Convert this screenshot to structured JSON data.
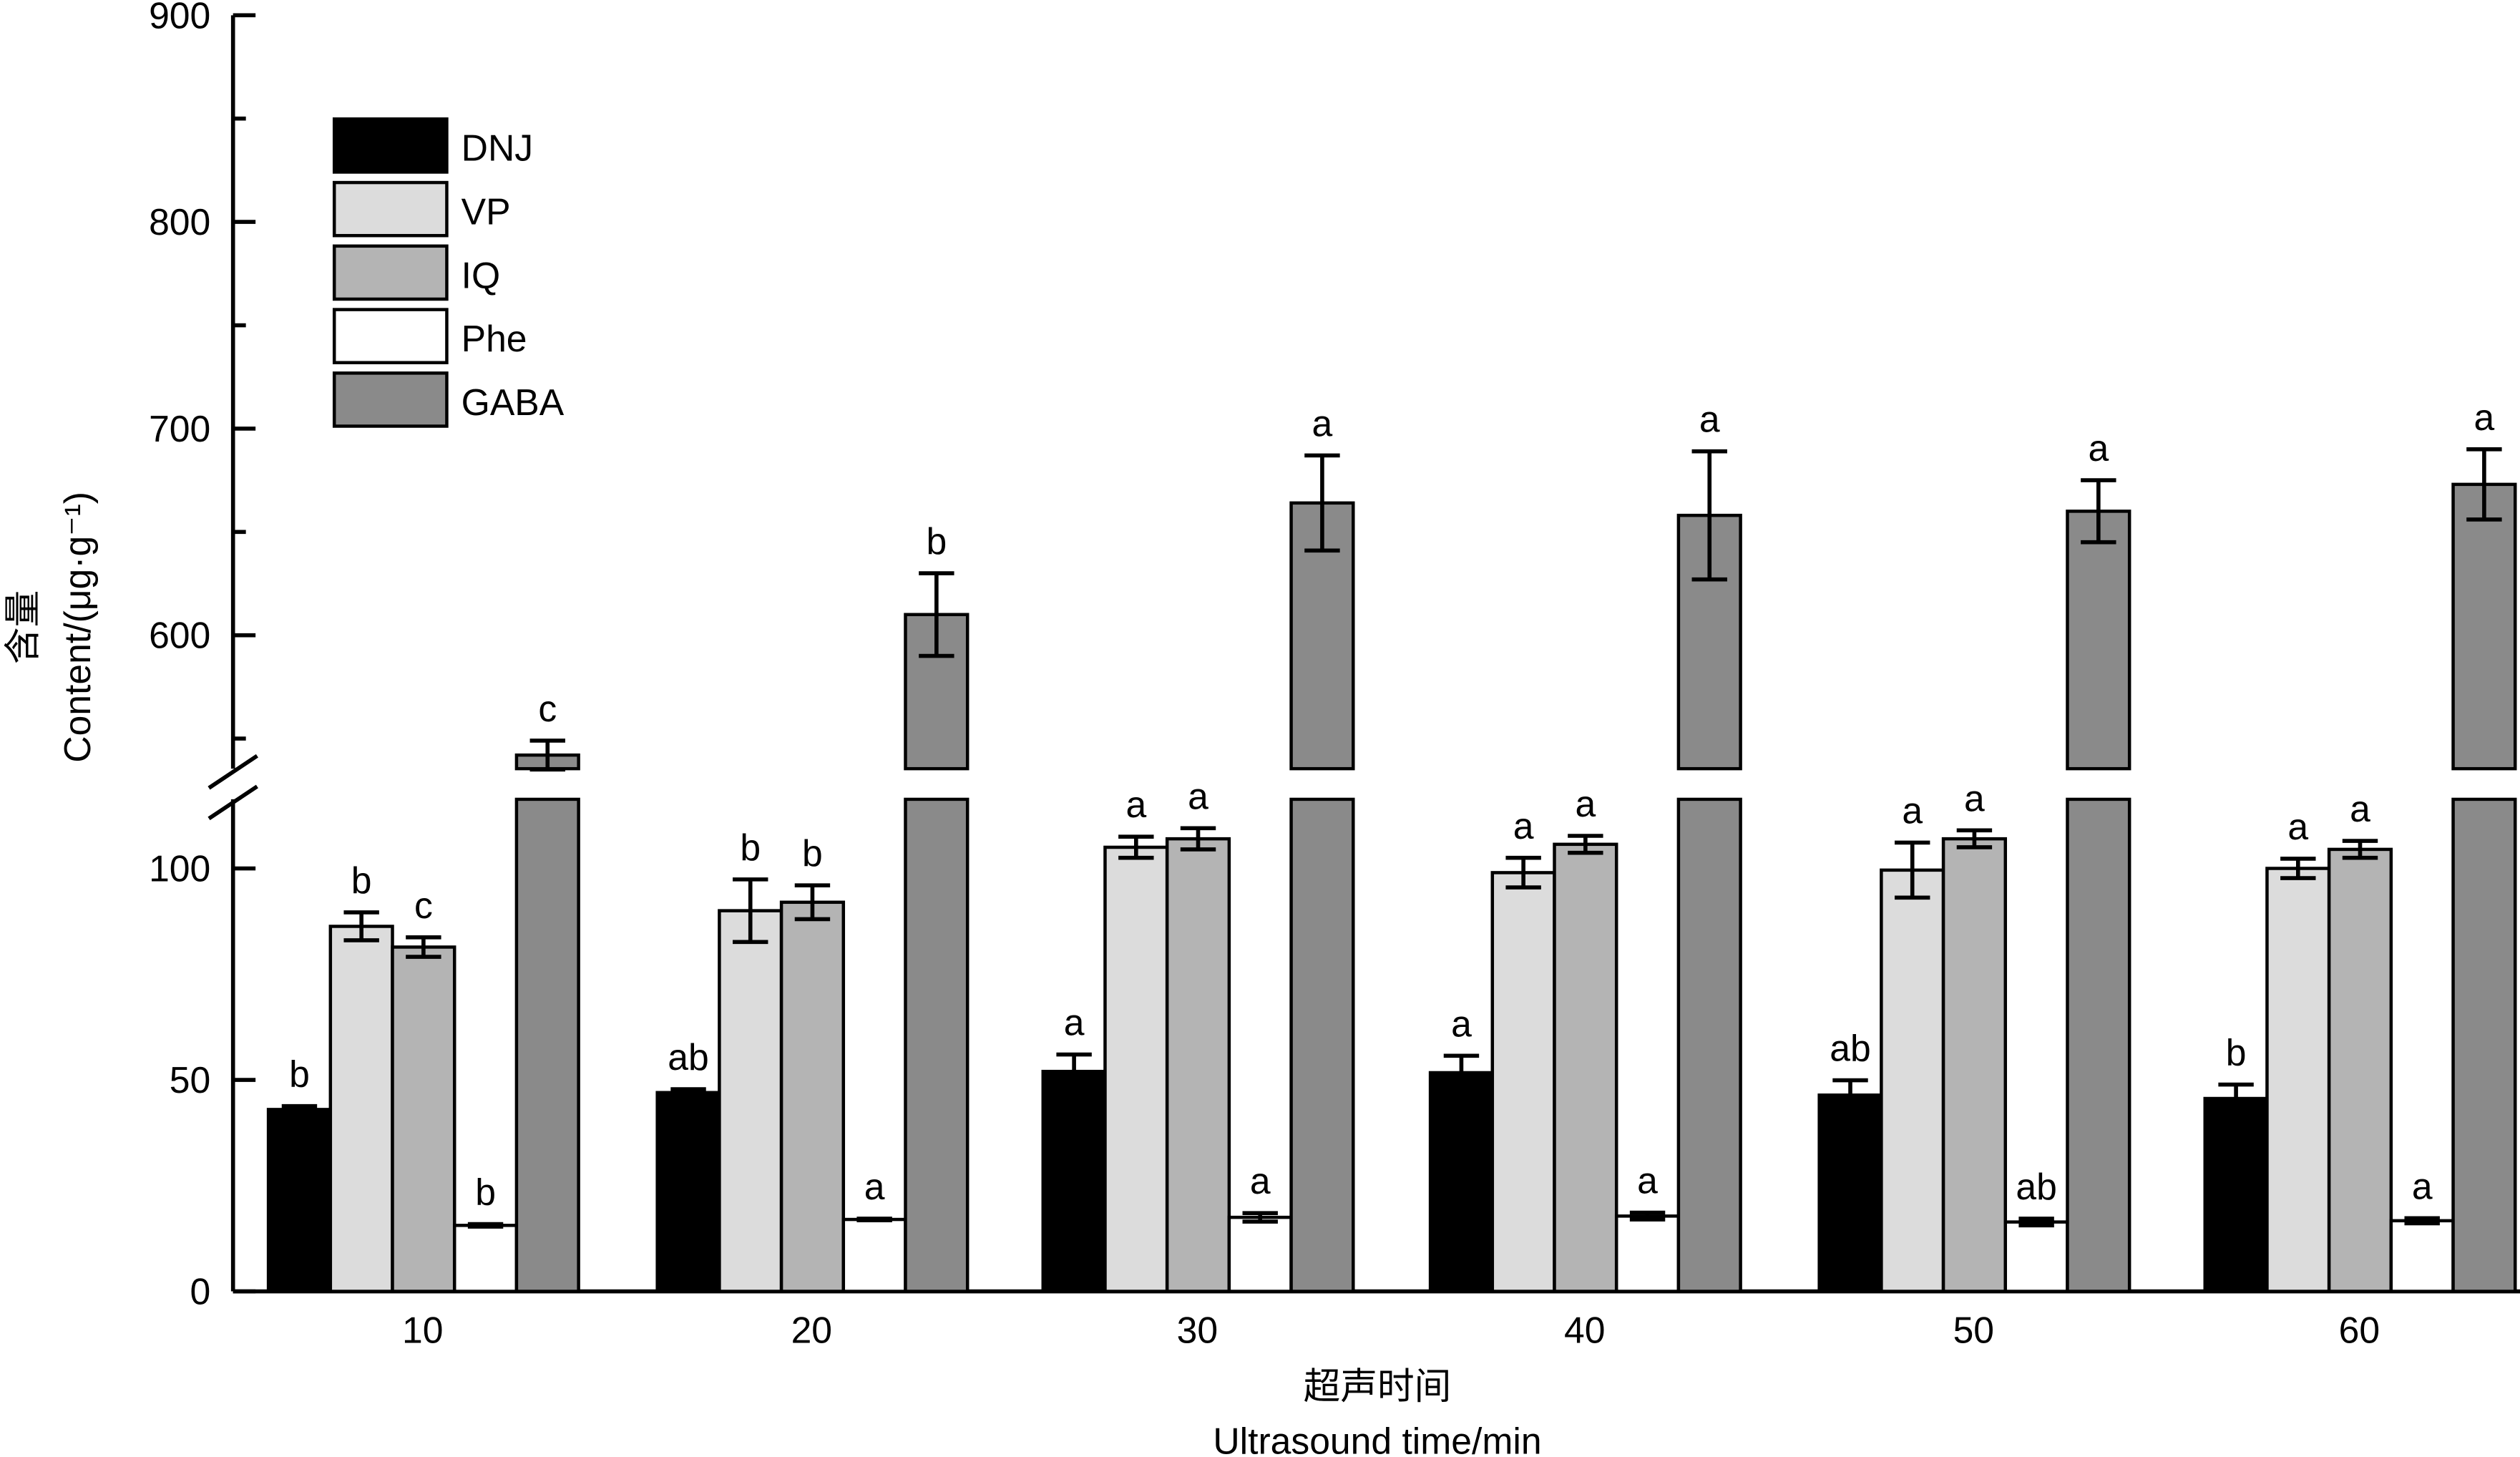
{
  "chart_data": {
    "type": "bar",
    "title": "",
    "xlabel_cn": "超声时间",
    "xlabel": "Ultrasound time/min",
    "ylabel_cn": "含量",
    "ylabel": "Content/(μg·g⁻¹)",
    "categories": [
      "10",
      "20",
      "30",
      "40",
      "50",
      "60"
    ],
    "y_axis_break": {
      "lower_range": [
        0,
        115
      ],
      "upper_range": [
        530,
        900
      ]
    },
    "yticks_lower": [
      "0",
      "50",
      "100"
    ],
    "yticks_upper": [
      "600",
      "700",
      "800",
      "900"
    ],
    "legend_position": "top-left",
    "series": [
      {
        "name": "DNJ",
        "color": "#000000",
        "values": [
          43,
          47,
          52,
          51.7,
          46.4,
          45.6
        ],
        "errors": [
          0.8,
          0.8,
          4,
          4,
          3.5,
          3.3
        ],
        "letters": [
          "b",
          "ab",
          "a",
          "a",
          "ab",
          "b"
        ]
      },
      {
        "name": "VP",
        "color": "#dcdcdc",
        "values": [
          86.3,
          90,
          105,
          99,
          99.6,
          100
        ],
        "errors": [
          3.3,
          7.4,
          2.5,
          3.5,
          6.5,
          2.3
        ],
        "letters": [
          "b",
          "b",
          "a",
          "a",
          "a",
          "a"
        ]
      },
      {
        "name": "IQ",
        "color": "#b4b4b4",
        "values": [
          81.4,
          92,
          107,
          105.7,
          107,
          104.5
        ],
        "errors": [
          2.3,
          4,
          2.5,
          2,
          2,
          2
        ],
        "letters": [
          "c",
          "b",
          "a",
          "a",
          "a",
          "a"
        ]
      },
      {
        "name": "Phe",
        "color": "#ffffff",
        "values": [
          15.6,
          17,
          17.5,
          17.8,
          16.4,
          16.7
        ],
        "errors": [
          0.3,
          0.2,
          1,
          0.8,
          0.8,
          0.6
        ],
        "letters": [
          "b",
          "a",
          "a",
          "a",
          "ab",
          "a"
        ]
      },
      {
        "name": "GABA",
        "color": "#8a8a8a",
        "values": [
          542,
          610,
          664,
          658,
          660,
          673
        ],
        "errors": [
          7,
          20,
          23,
          31,
          15,
          17
        ],
        "letters": [
          "c",
          "b",
          "a",
          "a",
          "a",
          "a"
        ]
      }
    ]
  }
}
